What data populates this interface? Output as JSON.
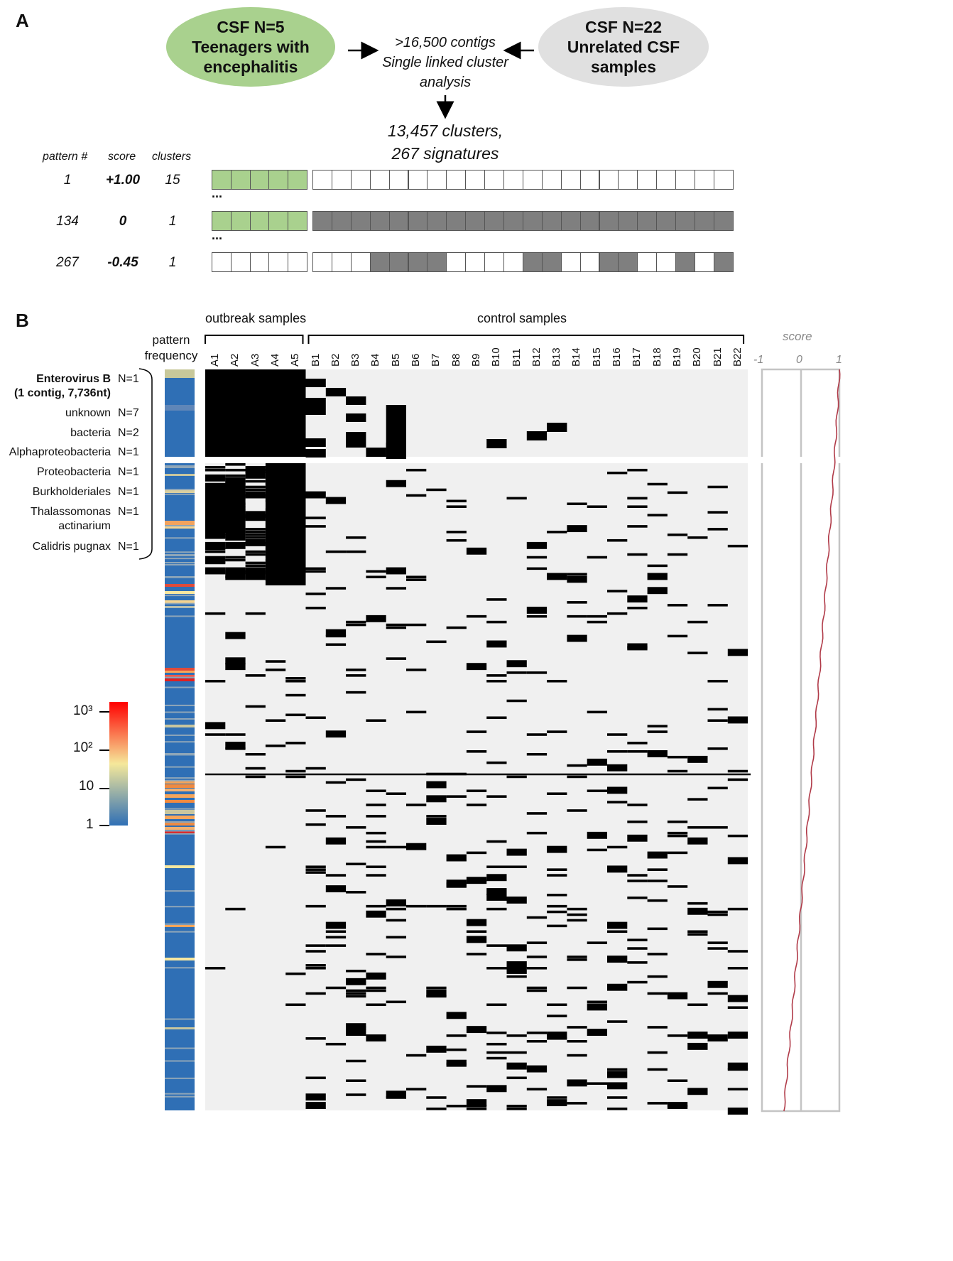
{
  "panel_a": {
    "letter": "A",
    "left_ellipse": "CSF N=5\nTeenagers with\nencephalitis",
    "right_ellipse": "CSF N=22\nUnrelated CSF\nsamples",
    "middle_text": ">16,500 contigs\nSingle linked cluster\nanalysis",
    "result_text": "13,457 clusters,\n267 signatures",
    "headers": {
      "pattern": "pattern #",
      "score": "score",
      "clusters": "clusters"
    },
    "ellipsis": "...",
    "rows": [
      {
        "pattern": "1",
        "score": "+1.00",
        "clusters": "15",
        "a_colors": [
          "green",
          "green",
          "green",
          "green",
          "green"
        ],
        "b_colors": [
          "w",
          "w",
          "w",
          "w",
          "w",
          "w",
          "w",
          "w",
          "w",
          "w",
          "w",
          "w",
          "w",
          "w",
          "w",
          "w",
          "w",
          "w",
          "w",
          "w",
          "w",
          "w"
        ]
      },
      {
        "pattern": "134",
        "score": "0",
        "clusters": "1",
        "a_colors": [
          "green",
          "green",
          "green",
          "green",
          "green"
        ],
        "b_colors": [
          "g",
          "g",
          "g",
          "g",
          "g",
          "g",
          "g",
          "g",
          "g",
          "g",
          "g",
          "g",
          "g",
          "g",
          "g",
          "g",
          "g",
          "g",
          "g",
          "g",
          "g",
          "g"
        ]
      },
      {
        "pattern": "267",
        "score": "-0.45",
        "clusters": "1",
        "a_colors": [
          "w",
          "w",
          "w",
          "w",
          "w"
        ],
        "b_colors": [
          "w",
          "w",
          "w",
          "g",
          "g",
          "g",
          "g",
          "w",
          "w",
          "w",
          "w",
          "g",
          "g",
          "w",
          "w",
          "g",
          "g",
          "w",
          "w",
          "g",
          "w",
          "g"
        ]
      }
    ],
    "colors": {
      "green": "#a9d18e",
      "gray": "#7f7f7f",
      "white": "#ffffff",
      "left_ellipse": "#a9d18e",
      "right_ellipse": "#e0e0e0"
    }
  },
  "panel_b": {
    "letter": "B",
    "pattern_frequency_label": "pattern\nfrequency",
    "outbreak_label": "outbreak samples",
    "control_label": "control samples",
    "columns_a": [
      "A1",
      "A2",
      "A3",
      "A4",
      "A5"
    ],
    "columns_b": [
      "B1",
      "B2",
      "B3",
      "B4",
      "B5",
      "B6",
      "B7",
      "B8",
      "B9",
      "B10",
      "B11",
      "B12",
      "B13",
      "B14",
      "B15",
      "B16",
      "B17",
      "B18",
      "B19",
      "B20",
      "B21",
      "B22"
    ],
    "taxa": [
      {
        "name": "Enterovirus B\n(1 contig, 7,736nt)",
        "count": "N=1",
        "bold": true
      },
      {
        "name": "unknown",
        "count": "N=7",
        "bold": false
      },
      {
        "name": "bacteria",
        "count": "N=2",
        "bold": false
      },
      {
        "name": "Alphaproteobacteria",
        "count": "N=1",
        "bold": false
      },
      {
        "name": "Proteobacteria",
        "count": "N=1",
        "bold": false
      },
      {
        "name": "Burkholderiales",
        "count": "N=1",
        "bold": false
      },
      {
        "name": "Thalassomonas\nactinarium",
        "count": "N=1",
        "bold": false
      },
      {
        "name": "Calidris pugnax",
        "count": "N=1",
        "bold": false
      }
    ],
    "colorbar": {
      "ticks": [
        "10³",
        "10²",
        "10",
        "1"
      ],
      "gradient": [
        "#2f6fb5",
        "#f5e89a",
        "#ff0000"
      ]
    },
    "score_axis": {
      "title": "score",
      "ticks": [
        "-1",
        "0",
        "1"
      ]
    },
    "heatmap_background": "#f0f0f0",
    "mark_color": "#000000",
    "score_line_color": "#b03a48"
  }
}
